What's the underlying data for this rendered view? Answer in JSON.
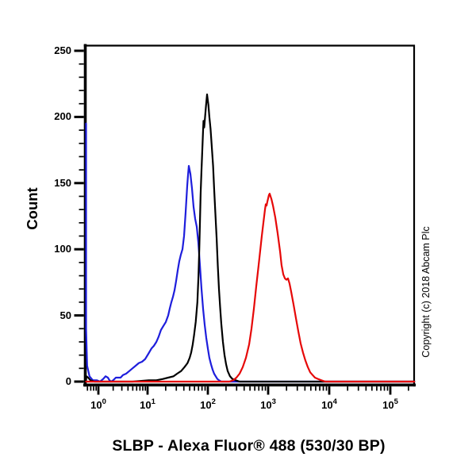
{
  "chart_data": {
    "type": "line",
    "title": "SLBP - Alexa Fluor® 488 (530/30 BP)",
    "ylabel": "Count",
    "xlabel": "",
    "copyright": "Copyright (c) 2018 Abcam Plc",
    "grid": false,
    "legend": "none",
    "x_axis": {
      "scale": "log",
      "tick_base": "10",
      "tick_exponents": [
        0,
        1,
        2,
        3,
        4,
        5
      ]
    },
    "y_axis": {
      "ticks": [
        0,
        50,
        100,
        150,
        200,
        250
      ],
      "minor_step": 10,
      "range": [
        0,
        250
      ]
    },
    "series": [
      {
        "name": "series-blue",
        "color": "#1e1edc",
        "points": [
          [
            0.51,
            195
          ],
          [
            0.53,
            100
          ],
          [
            0.55,
            40
          ],
          [
            0.59,
            12
          ],
          [
            0.66,
            4
          ],
          [
            0.77,
            1
          ],
          [
            0.93,
            1
          ],
          [
            1.08,
            0
          ],
          [
            1.25,
            2
          ],
          [
            1.4,
            4
          ],
          [
            1.56,
            3
          ],
          [
            1.68,
            1
          ],
          [
            1.81,
            0
          ],
          [
            2.0,
            1
          ],
          [
            2.26,
            3
          ],
          [
            2.53,
            3
          ],
          [
            2.83,
            3
          ],
          [
            3.16,
            5
          ],
          [
            3.67,
            6
          ],
          [
            4.26,
            8
          ],
          [
            4.94,
            10
          ],
          [
            5.73,
            12
          ],
          [
            6.65,
            14
          ],
          [
            7.71,
            15
          ],
          [
            8.95,
            17
          ],
          [
            10.3,
            21
          ],
          [
            11.6,
            25
          ],
          [
            12.7,
            27
          ],
          [
            14,
            30
          ],
          [
            15.3,
            34
          ],
          [
            16.7,
            39
          ],
          [
            18.3,
            42
          ],
          [
            20.1,
            45
          ],
          [
            22,
            50
          ],
          [
            23.3,
            55
          ],
          [
            24.8,
            60
          ],
          [
            26.4,
            64
          ],
          [
            28,
            69
          ],
          [
            29.8,
            76
          ],
          [
            31.6,
            84
          ],
          [
            33.6,
            91
          ],
          [
            35.7,
            96
          ],
          [
            37.9,
            100
          ],
          [
            40.3,
            110
          ],
          [
            42.8,
            128
          ],
          [
            45.5,
            148
          ],
          [
            46.9,
            156
          ],
          [
            48.3,
            163
          ],
          [
            51.4,
            157
          ],
          [
            54.6,
            146
          ],
          [
            58,
            132
          ],
          [
            61.6,
            123
          ],
          [
            65.5,
            117
          ],
          [
            69.5,
            105
          ],
          [
            73.9,
            88
          ],
          [
            78.5,
            70
          ],
          [
            83.4,
            55
          ],
          [
            88.6,
            43
          ],
          [
            94.1,
            33
          ],
          [
            100,
            25
          ],
          [
            106,
            18
          ],
          [
            113,
            13
          ],
          [
            120,
            9
          ],
          [
            127,
            6
          ],
          [
            135,
            4
          ],
          [
            144,
            2
          ],
          [
            153,
            1
          ],
          [
            167,
            0
          ],
          [
            250000,
            0
          ]
        ]
      },
      {
        "name": "series-black",
        "color": "#000000",
        "points": [
          [
            0.53,
            1
          ],
          [
            0.57,
            4
          ],
          [
            0.62,
            3
          ],
          [
            0.69,
            1
          ],
          [
            0.83,
            0
          ],
          [
            5,
            0
          ],
          [
            10.5,
            1
          ],
          [
            14,
            1
          ],
          [
            18,
            2
          ],
          [
            22,
            3
          ],
          [
            27,
            4
          ],
          [
            31,
            6
          ],
          [
            36,
            8
          ],
          [
            41,
            11
          ],
          [
            46,
            14
          ],
          [
            50,
            18
          ],
          [
            53,
            22
          ],
          [
            56,
            28
          ],
          [
            59,
            35
          ],
          [
            63,
            45
          ],
          [
            67,
            60
          ],
          [
            70,
            80
          ],
          [
            72,
            100
          ],
          [
            74,
            122
          ],
          [
            76,
            142
          ],
          [
            78.5,
            160
          ],
          [
            81,
            175
          ],
          [
            83.5,
            190
          ],
          [
            84.7,
            197
          ],
          [
            87,
            192
          ],
          [
            90,
            200
          ],
          [
            93,
            208
          ],
          [
            97,
            217
          ],
          [
            102,
            209
          ],
          [
            106,
            200
          ],
          [
            111,
            191
          ],
          [
            116,
            178
          ],
          [
            122,
            163
          ],
          [
            127,
            146
          ],
          [
            133,
            128
          ],
          [
            140,
            108
          ],
          [
            146,
            88
          ],
          [
            153,
            70
          ],
          [
            160,
            56
          ],
          [
            167,
            44
          ],
          [
            178,
            30
          ],
          [
            189,
            20
          ],
          [
            201,
            13
          ],
          [
            213,
            8
          ],
          [
            233,
            4
          ],
          [
            256,
            2
          ],
          [
            289,
            1
          ],
          [
            336,
            0
          ],
          [
            250000,
            0
          ]
        ]
      },
      {
        "name": "series-red",
        "color": "#e60808",
        "points": [
          [
            0.51,
            0
          ],
          [
            227,
            0
          ],
          [
            264,
            1
          ],
          [
            298,
            3
          ],
          [
            336,
            6
          ],
          [
            379,
            11
          ],
          [
            428,
            18
          ],
          [
            483,
            28
          ],
          [
            530,
            40
          ],
          [
            579,
            55
          ],
          [
            635,
            72
          ],
          [
            695,
            88
          ],
          [
            738,
            99
          ],
          [
            785,
            110
          ],
          [
            834,
            120
          ],
          [
            886,
            130
          ],
          [
            914,
            134
          ],
          [
            942,
            133
          ],
          [
            971,
            136
          ],
          [
            1030,
            141
          ],
          [
            1060,
            142
          ],
          [
            1130,
            138
          ],
          [
            1200,
            133
          ],
          [
            1310,
            124
          ],
          [
            1430,
            112
          ],
          [
            1570,
            98
          ],
          [
            1660,
            88
          ],
          [
            1770,
            81
          ],
          [
            1880,
            78
          ],
          [
            1990,
            77
          ],
          [
            2110,
            78
          ],
          [
            2240,
            74
          ],
          [
            2380,
            68
          ],
          [
            2610,
            58
          ],
          [
            2850,
            48
          ],
          [
            3120,
            38
          ],
          [
            3400,
            29
          ],
          [
            3720,
            22
          ],
          [
            4070,
            16
          ],
          [
            4460,
            11
          ],
          [
            4880,
            7
          ],
          [
            5330,
            5
          ],
          [
            5830,
            3
          ],
          [
            6580,
            2
          ],
          [
            7410,
            1
          ],
          [
            8610,
            0
          ],
          [
            250000,
            0
          ]
        ]
      }
    ]
  }
}
